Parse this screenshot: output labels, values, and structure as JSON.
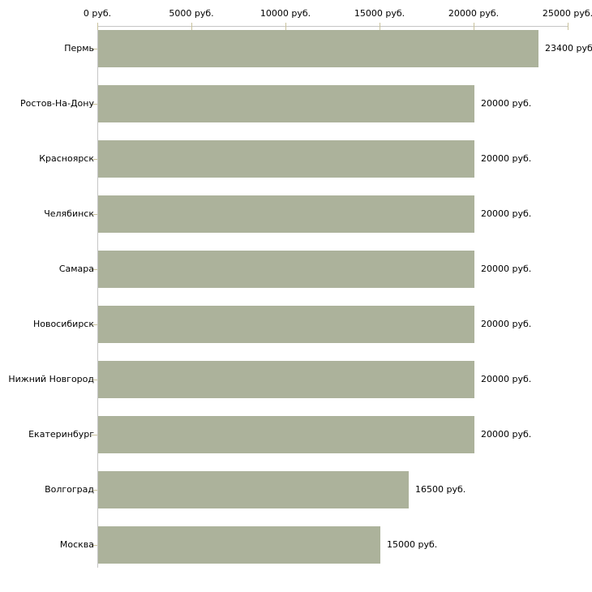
{
  "chart_data": {
    "type": "bar",
    "orientation": "horizontal",
    "title": "",
    "xlabel": "",
    "ylabel": "",
    "categories": [
      "Пермь",
      "Ростов-На-Дону",
      "Красноярск",
      "Челябинск",
      "Самара",
      "Новосибирск",
      "Нижний Новгород",
      "Екатеринбург",
      "Волгоград",
      "Москва"
    ],
    "values": [
      23400,
      20000,
      20000,
      20000,
      20000,
      20000,
      20000,
      20000,
      16500,
      15000
    ],
    "value_labels": [
      "23400 руб.",
      "20000 руб.",
      "20000 руб.",
      "20000 руб.",
      "20000 руб.",
      "20000 руб.",
      "20000 руб.",
      "20000 руб.",
      "16500 руб.",
      "15000 руб."
    ],
    "x_tick_values": [
      0,
      5000,
      10000,
      15000,
      20000,
      25000
    ],
    "x_tick_labels": [
      "0 руб.",
      "5000 руб.",
      "10000 руб.",
      "15000 руб.",
      "20000 руб.",
      "25000 руб."
    ],
    "xlim": [
      0,
      25000
    ],
    "grid": false,
    "legend": null,
    "colors": {
      "bar": "#acb29b",
      "axis_line": "#c6c6c6",
      "tick": "#c9c29c",
      "text": "#000000",
      "background": "#ffffff"
    }
  }
}
